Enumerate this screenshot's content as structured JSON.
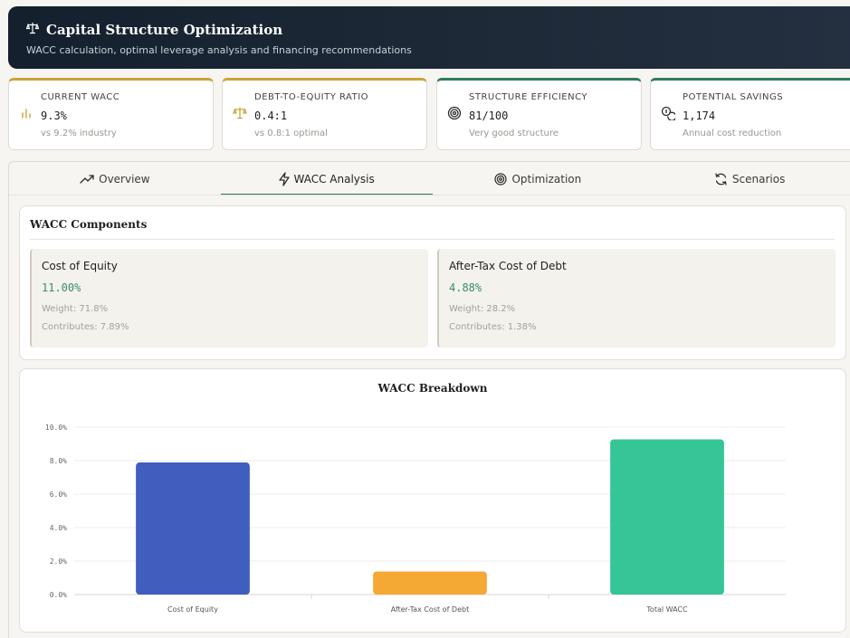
{
  "header": {
    "title": "Capital Structure Optimization",
    "subtitle": "WACC calculation, optimal leverage analysis and financing recommendations",
    "icon": "scale-icon"
  },
  "kpis": [
    {
      "label": "CURRENT WACC",
      "value": "9.3%",
      "sub": "vs 9.2% industry",
      "icon": "bar-chart-icon",
      "accent": "#c9a43b"
    },
    {
      "label": "DEBT-TO-EQUITY RATIO",
      "value": "0.4:1",
      "sub": "vs 0.8:1 optimal",
      "icon": "scale-icon",
      "accent": "#c9a43b"
    },
    {
      "label": "STRUCTURE EFFICIENCY",
      "value": "81/100",
      "sub": "Very good structure",
      "icon": "target-icon",
      "accent": "#2f7d5b"
    },
    {
      "label": "POTENTIAL SAVINGS",
      "value": "1,174",
      "sub": "Annual cost reduction",
      "icon": "coins-icon",
      "accent": "#2f7d5b"
    }
  ],
  "tabs": [
    {
      "label": "Overview",
      "icon": "trend-up-icon",
      "active": false
    },
    {
      "label": "WACC Analysis",
      "icon": "lightning-icon",
      "active": true
    },
    {
      "label": "Optimization",
      "icon": "target-icon",
      "active": false
    },
    {
      "label": "Scenarios",
      "icon": "refresh-icon",
      "active": false
    }
  ],
  "components": {
    "title": "WACC Components",
    "items": [
      {
        "name": "Cost of Equity",
        "rate": "11.00%",
        "weight": "Weight: 71.8%",
        "contrib": "Contributes: 7.89%"
      },
      {
        "name": "After-Tax Cost of Debt",
        "rate": "4.88%",
        "weight": "Weight: 28.2%",
        "contrib": "Contributes: 1.38%"
      }
    ]
  },
  "chart_data": {
    "type": "bar",
    "title": "WACC Breakdown",
    "categories": [
      "Cost of Equity",
      "After-Tax Cost of Debt",
      "Total WACC"
    ],
    "values": [
      7.89,
      1.38,
      9.27
    ],
    "colors": [
      "#3f5ebd",
      "#f5a935",
      "#36c596"
    ],
    "yticks": [
      "0.0%",
      "2.0%",
      "4.0%",
      "6.0%",
      "8.0%",
      "10.0%"
    ],
    "ylim": [
      0,
      10
    ],
    "xlabel": "",
    "ylabel": "",
    "grid": true
  }
}
